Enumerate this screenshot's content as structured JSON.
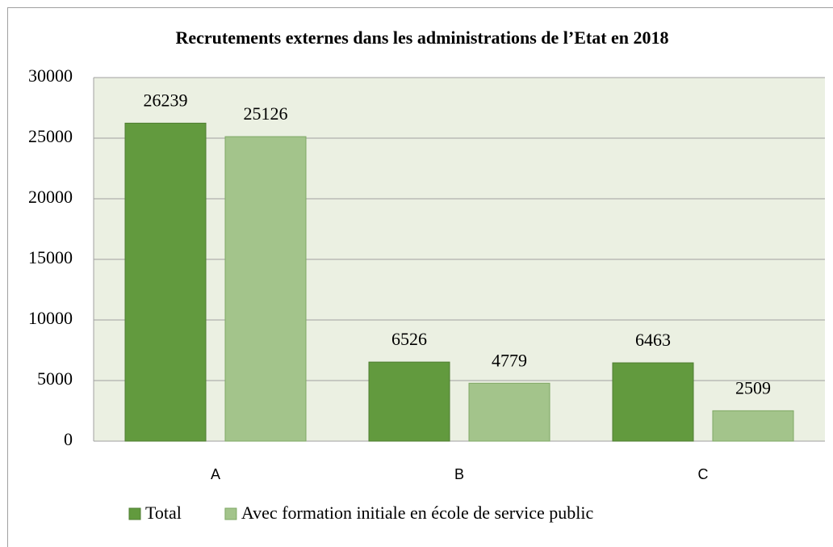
{
  "chart_data": {
    "type": "bar",
    "title": "Recrutements externes dans les administrations de l’Etat en 2018",
    "categories": [
      "A",
      "B",
      "C"
    ],
    "series": [
      {
        "name": "Total",
        "color": "#629a3e",
        "values": [
          26239,
          6526,
          6463
        ]
      },
      {
        "name": "Avec formation initiale en école de service public",
        "color": "#a3c48b",
        "values": [
          25126,
          4779,
          2509
        ]
      }
    ],
    "ylim": [
      0,
      30000
    ],
    "yticks": [
      0,
      5000,
      10000,
      15000,
      20000,
      25000,
      30000
    ],
    "grid": true,
    "legend": "bottom"
  }
}
